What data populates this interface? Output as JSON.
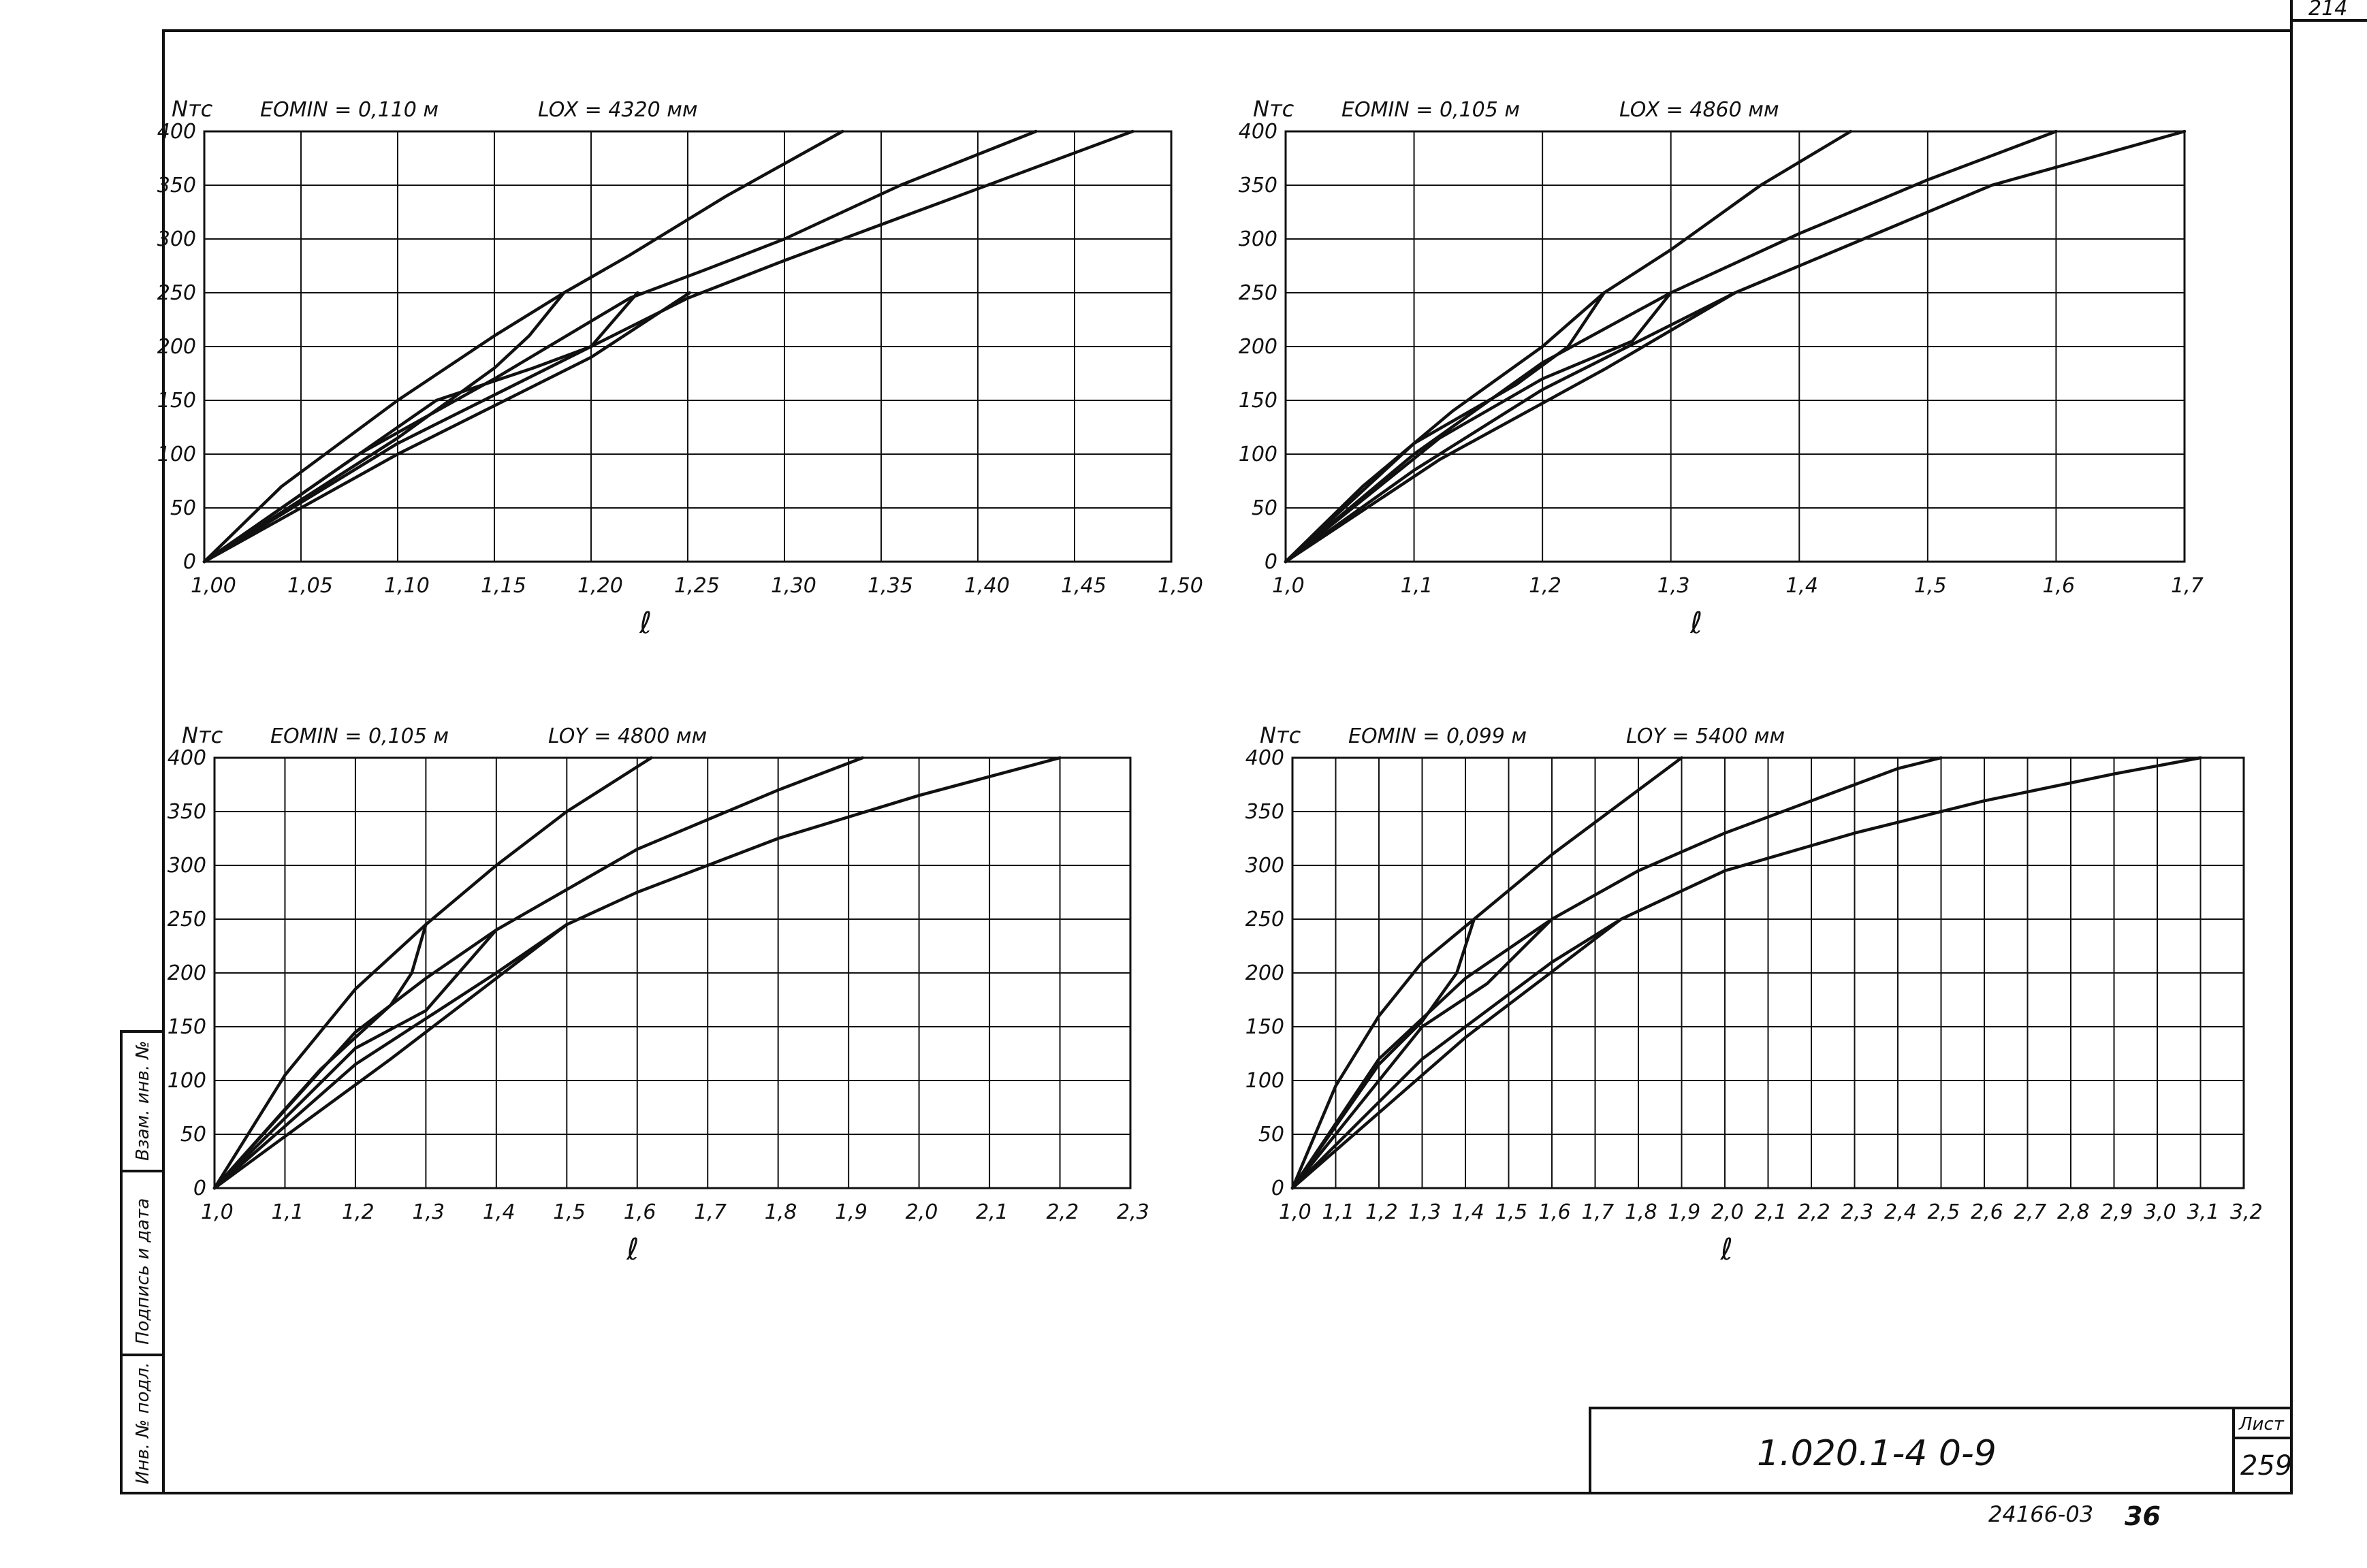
{
  "sheet": {
    "corner_number": "214",
    "drawing_code": "1.020.1-4  0-9",
    "sheet_label": "Лист",
    "sheet_number": "259",
    "bottom_code": "24166-03",
    "bottom_suffix": "36",
    "side_stamp": [
      "Инв. № подл.",
      "Подпись и дата",
      "Взам. инв. №"
    ]
  },
  "chart_data": [
    {
      "type": "line",
      "ylabel": "Nтс",
      "xlabel": "ℓ",
      "param1": "EOMIN = 0,110 м",
      "param2": "LOX = 4320 мм",
      "xlim": [
        1.0,
        1.5
      ],
      "ylim": [
        0,
        400
      ],
      "xticks": [
        1.0,
        1.05,
        1.1,
        1.15,
        1.2,
        1.25,
        1.3,
        1.35,
        1.4,
        1.45,
        1.5
      ],
      "xtick_labels": [
        "1,00",
        "1,05",
        "1,10",
        "1,15",
        "1,20",
        "1,25",
        "1,30",
        "1,35",
        "1,40",
        "1,45",
        "1,50"
      ],
      "yticks": [
        0,
        50,
        100,
        150,
        200,
        250,
        300,
        350,
        400
      ],
      "ytick_labels": [
        "0",
        "50",
        "100",
        "150",
        "200",
        "250",
        "300",
        "350",
        "400"
      ],
      "series": [
        {
          "x": [
            1.0,
            1.04,
            1.1,
            1.15,
            1.186,
            1.22,
            1.27,
            1.33
          ],
          "y": [
            0,
            70,
            150,
            210,
            250,
            285,
            340,
            400
          ]
        },
        {
          "x": [
            1.0,
            1.1,
            1.15,
            1.168,
            1.186
          ],
          "y": [
            0,
            115,
            180,
            210,
            250
          ]
        },
        {
          "x": [
            1.0,
            1.08,
            1.15,
            1.22,
            1.26,
            1.3,
            1.36,
            1.43
          ],
          "y": [
            0,
            100,
            170,
            245,
            272,
            300,
            350,
            400
          ]
        },
        {
          "x": [
            1.0,
            1.12,
            1.17,
            1.2,
            1.224
          ],
          "y": [
            0,
            150,
            180,
            200,
            250
          ]
        },
        {
          "x": [
            1.0,
            1.1,
            1.2,
            1.25,
            1.3,
            1.36,
            1.42,
            1.48
          ],
          "y": [
            0,
            110,
            200,
            245,
            280,
            320,
            360,
            400
          ]
        },
        {
          "x": [
            1.0,
            1.1,
            1.2,
            1.251
          ],
          "y": [
            0,
            100,
            190,
            250
          ]
        }
      ]
    },
    {
      "type": "line",
      "ylabel": "Nтс",
      "xlabel": "ℓ",
      "param1": "EOMIN = 0,105 м",
      "param2": "LOX = 4860 мм",
      "xlim": [
        1.0,
        1.7
      ],
      "ylim": [
        0,
        400
      ],
      "xticks": [
        1.0,
        1.1,
        1.2,
        1.3,
        1.4,
        1.5,
        1.6,
        1.7
      ],
      "xtick_labels": [
        "1,0",
        "1,1",
        "1,2",
        "1,3",
        "1,4",
        "1,5",
        "1,6",
        "1,7"
      ],
      "yticks": [
        0,
        50,
        100,
        150,
        200,
        250,
        300,
        350,
        400
      ],
      "ytick_labels": [
        "0",
        "50",
        "100",
        "150",
        "200",
        "250",
        "300",
        "350",
        "400"
      ],
      "series": [
        {
          "x": [
            1.0,
            1.06,
            1.13,
            1.2,
            1.248,
            1.3,
            1.37,
            1.44
          ],
          "y": [
            0,
            70,
            140,
            200,
            250,
            290,
            350,
            400
          ]
        },
        {
          "x": [
            1.0,
            1.1,
            1.18,
            1.22,
            1.248
          ],
          "y": [
            0,
            110,
            165,
            200,
            250
          ]
        },
        {
          "x": [
            1.0,
            1.1,
            1.2,
            1.3,
            1.4,
            1.5,
            1.6
          ],
          "y": [
            0,
            100,
            185,
            250,
            305,
            355,
            400
          ]
        },
        {
          "x": [
            1.0,
            1.12,
            1.2,
            1.27,
            1.3
          ],
          "y": [
            0,
            115,
            170,
            205,
            250
          ]
        },
        {
          "x": [
            1.0,
            1.1,
            1.2,
            1.3,
            1.35,
            1.45,
            1.55,
            1.7
          ],
          "y": [
            0,
            85,
            160,
            220,
            250,
            300,
            350,
            400
          ]
        },
        {
          "x": [
            1.0,
            1.12,
            1.25,
            1.35
          ],
          "y": [
            0,
            95,
            180,
            250
          ]
        }
      ]
    },
    {
      "type": "line",
      "ylabel": "Nтс",
      "xlabel": "ℓ",
      "param1": "EOMIN = 0,105 м",
      "param2": "LOY = 4800 мм",
      "xlim": [
        1.0,
        2.3
      ],
      "ylim": [
        0,
        400
      ],
      "xticks": [
        1.0,
        1.1,
        1.2,
        1.3,
        1.4,
        1.5,
        1.6,
        1.7,
        1.8,
        1.9,
        2.0,
        2.1,
        2.2,
        2.3
      ],
      "xtick_labels": [
        "1,0",
        "1,1",
        "1,2",
        "1,3",
        "1,4",
        "1,5",
        "1,6",
        "1,7",
        "1,8",
        "1,9",
        "2,0",
        "2,1",
        "2,2",
        "2,3"
      ],
      "yticks": [
        0,
        50,
        100,
        150,
        200,
        250,
        300,
        350,
        400
      ],
      "ytick_labels": [
        "0",
        "50",
        "100",
        "150",
        "200",
        "250",
        "300",
        "350",
        "400"
      ],
      "series": [
        {
          "x": [
            1.0,
            1.1,
            1.2,
            1.3,
            1.4,
            1.5,
            1.62
          ],
          "y": [
            0,
            105,
            185,
            245,
            300,
            350,
            400
          ]
        },
        {
          "x": [
            1.0,
            1.15,
            1.25,
            1.28,
            1.3
          ],
          "y": [
            0,
            110,
            170,
            200,
            245
          ]
        },
        {
          "x": [
            1.0,
            1.2,
            1.3,
            1.4,
            1.6,
            1.8,
            1.92
          ],
          "y": [
            0,
            145,
            195,
            240,
            315,
            370,
            400
          ]
        },
        {
          "x": [
            1.0,
            1.2,
            1.3,
            1.4
          ],
          "y": [
            0,
            130,
            165,
            240
          ]
        },
        {
          "x": [
            1.0,
            1.2,
            1.4,
            1.5,
            1.6,
            1.8,
            2.0,
            2.2
          ],
          "y": [
            0,
            115,
            200,
            245,
            275,
            325,
            365,
            400
          ]
        },
        {
          "x": [
            1.0,
            1.25,
            1.5
          ],
          "y": [
            0,
            120,
            245
          ]
        }
      ]
    },
    {
      "type": "line",
      "ylabel": "Nтс",
      "xlabel": "ℓ",
      "param1": "EOMIN = 0,099 м",
      "param2": "LOY = 5400 мм",
      "xlim": [
        1.0,
        3.2
      ],
      "ylim": [
        0,
        400
      ],
      "xticks": [
        1.0,
        1.1,
        1.2,
        1.3,
        1.4,
        1.5,
        1.6,
        1.7,
        1.8,
        1.9,
        2.0,
        2.1,
        2.2,
        2.3,
        2.4,
        2.5,
        2.6,
        2.7,
        2.8,
        2.9,
        3.0,
        3.1,
        3.2
      ],
      "xtick_labels": [
        "1,0",
        "1,1",
        "1,2",
        "1,3",
        "1,4",
        "1,5",
        "1,6",
        "1,7",
        "1,8",
        "1,9",
        "2,0",
        "2,1",
        "2,2",
        "2,3",
        "2,4",
        "2,5",
        "2,6",
        "2,7",
        "2,8",
        "2,9",
        "3,0",
        "3,1",
        "3,2"
      ],
      "yticks": [
        0,
        50,
        100,
        150,
        200,
        250,
        300,
        350,
        400
      ],
      "ytick_labels": [
        "0",
        "50",
        "100",
        "150",
        "200",
        "250",
        "300",
        "350",
        "400"
      ],
      "series": [
        {
          "x": [
            1.0,
            1.1,
            1.2,
            1.3,
            1.42,
            1.6,
            1.75,
            1.9
          ],
          "y": [
            0,
            95,
            160,
            210,
            250,
            310,
            355,
            400
          ]
        },
        {
          "x": [
            1.0,
            1.2,
            1.3,
            1.38,
            1.42
          ],
          "y": [
            0,
            115,
            155,
            200,
            250
          ]
        },
        {
          "x": [
            1.0,
            1.2,
            1.4,
            1.6,
            1.8,
            2.0,
            2.2,
            2.4,
            2.5
          ],
          "y": [
            0,
            120,
            195,
            250,
            295,
            330,
            360,
            390,
            400
          ]
        },
        {
          "x": [
            1.0,
            1.3,
            1.45,
            1.6
          ],
          "y": [
            0,
            150,
            190,
            250
          ]
        },
        {
          "x": [
            1.0,
            1.3,
            1.6,
            1.76,
            2.0,
            2.3,
            2.6,
            2.9,
            3.1
          ],
          "y": [
            0,
            120,
            210,
            250,
            295,
            330,
            360,
            385,
            400
          ]
        },
        {
          "x": [
            1.0,
            1.4,
            1.76
          ],
          "y": [
            0,
            140,
            250
          ]
        }
      ]
    }
  ]
}
